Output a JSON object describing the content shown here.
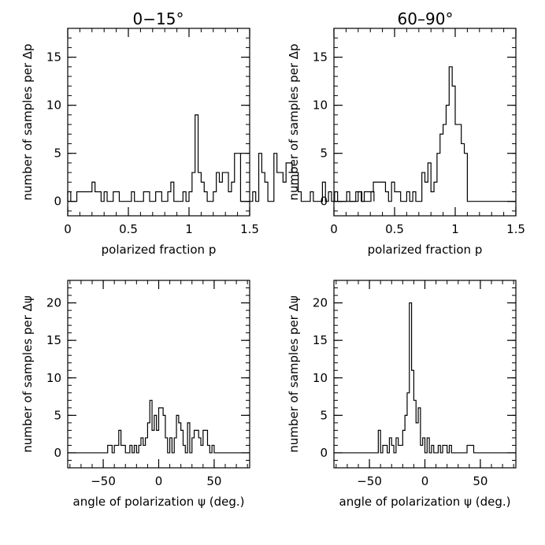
{
  "column_titles": [
    "0−15°",
    "60–90°"
  ],
  "chart_data": [
    {
      "type": "histogram",
      "panel": "top-left",
      "xlabel": "polarized fraction p",
      "ylabel": "number of samples per Δp",
      "xlim": [
        0,
        1.5
      ],
      "ylim": [
        -1.5,
        18
      ],
      "xticks": [
        0,
        0.5,
        1,
        1.5
      ],
      "xtick_labels": [
        "0",
        "0.5",
        "1",
        "1.5"
      ],
      "yticks": [
        0,
        5,
        10,
        15
      ],
      "ytick_labels": [
        "0",
        "5",
        "10",
        "15"
      ],
      "bin_width": 0.025,
      "bin_start": 0,
      "counts": [
        1,
        0,
        0,
        1,
        1,
        1,
        1,
        1,
        2,
        1,
        1,
        0,
        1,
        0,
        0,
        1,
        1,
        0,
        0,
        0,
        0,
        1,
        0,
        0,
        0,
        1,
        1,
        0,
        0,
        1,
        1,
        0,
        0,
        1,
        2,
        0,
        0,
        0,
        1,
        0,
        1,
        3,
        9,
        3,
        2,
        1,
        0,
        0,
        1,
        3,
        2,
        3,
        3,
        1,
        2,
        5,
        5,
        0,
        0,
        0,
        0,
        1,
        0,
        5,
        3,
        2,
        0,
        0,
        5,
        3,
        3,
        2,
        4,
        4,
        3,
        3,
        1,
        0,
        0,
        0,
        1,
        0,
        0,
        0,
        2,
        0,
        1,
        0,
        1,
        0,
        0,
        0,
        1,
        0,
        0,
        1,
        1,
        0,
        0,
        0,
        1
      ],
      "series_color": "#000000"
    },
    {
      "type": "histogram",
      "panel": "top-right",
      "xlabel": "polarized fraction p",
      "ylabel": "number of samples per Δp",
      "xlim": [
        0,
        1.5
      ],
      "ylim": [
        -1.5,
        18
      ],
      "xticks": [
        0,
        0.5,
        1,
        1.5
      ],
      "xtick_labels": [
        "0",
        "0.5",
        "1",
        "1.5"
      ],
      "yticks": [
        0,
        5,
        10,
        15
      ],
      "ytick_labels": [
        "0",
        "5",
        "10",
        "15"
      ],
      "bin_width": 0.025,
      "bin_start": 0,
      "counts": [
        0,
        0,
        0,
        0,
        0,
        0,
        0,
        0,
        1,
        0,
        1,
        1,
        1,
        2,
        2,
        2,
        2,
        1,
        0,
        2,
        1,
        1,
        0,
        0,
        1,
        0,
        1,
        0,
        0,
        3,
        2,
        4,
        1,
        2,
        5,
        7,
        8,
        10,
        14,
        12,
        8,
        8,
        6,
        5,
        0,
        0,
        0,
        0,
        0,
        0,
        0,
        0,
        0,
        0,
        0,
        0,
        0,
        0,
        0,
        0
      ],
      "series_color": "#000000"
    },
    {
      "type": "histogram",
      "panel": "bottom-left",
      "xlabel": "angle of polarization ψ (deg.)",
      "ylabel": "number of samples per Δψ",
      "xlim": [
        -82,
        82
      ],
      "ylim": [
        -2,
        23
      ],
      "xticks": [
        -50,
        0,
        50
      ],
      "xtick_labels": [
        "−50",
        "0",
        "50"
      ],
      "yticks": [
        0,
        5,
        10,
        15,
        20
      ],
      "ytick_labels": [
        "0",
        "5",
        "10",
        "15",
        "20"
      ],
      "bin_width": 2,
      "bin_start": -46,
      "counts": [
        1,
        1,
        0,
        1,
        1,
        3,
        1,
        1,
        0,
        0,
        1,
        0,
        1,
        0,
        1,
        2,
        1,
        2,
        4,
        7,
        3,
        5,
        3,
        6,
        6,
        5,
        2,
        0,
        2,
        0,
        2,
        5,
        4,
        3,
        1,
        0,
        4,
        0,
        2,
        3,
        3,
        2,
        1,
        3,
        3,
        1,
        0,
        1,
        0
      ],
      "series_color": "#000000"
    },
    {
      "type": "histogram",
      "panel": "bottom-right",
      "xlabel": "angle of polarization ψ (deg.)",
      "ylabel": "number of samples per Δψ",
      "xlim": [
        -82,
        82
      ],
      "ylim": [
        -2,
        23
      ],
      "xticks": [
        -50,
        0,
        50
      ],
      "xtick_labels": [
        "−50",
        "0",
        "50"
      ],
      "yticks": [
        0,
        5,
        10,
        15,
        20
      ],
      "ytick_labels": [
        "0",
        "5",
        "10",
        "15",
        "20"
      ],
      "bin_width": 2,
      "bin_start": -46,
      "counts": [
        0,
        0,
        3,
        0,
        1,
        1,
        0,
        2,
        1,
        0,
        2,
        1,
        1,
        3,
        5,
        8,
        20,
        11,
        7,
        4,
        6,
        1,
        2,
        0,
        2,
        0,
        1,
        0,
        0,
        1,
        0,
        1,
        1,
        0,
        1,
        0,
        0,
        0,
        0,
        0,
        0,
        0,
        1,
        1,
        1,
        0,
        0,
        0,
        0
      ],
      "series_color": "#000000"
    }
  ]
}
